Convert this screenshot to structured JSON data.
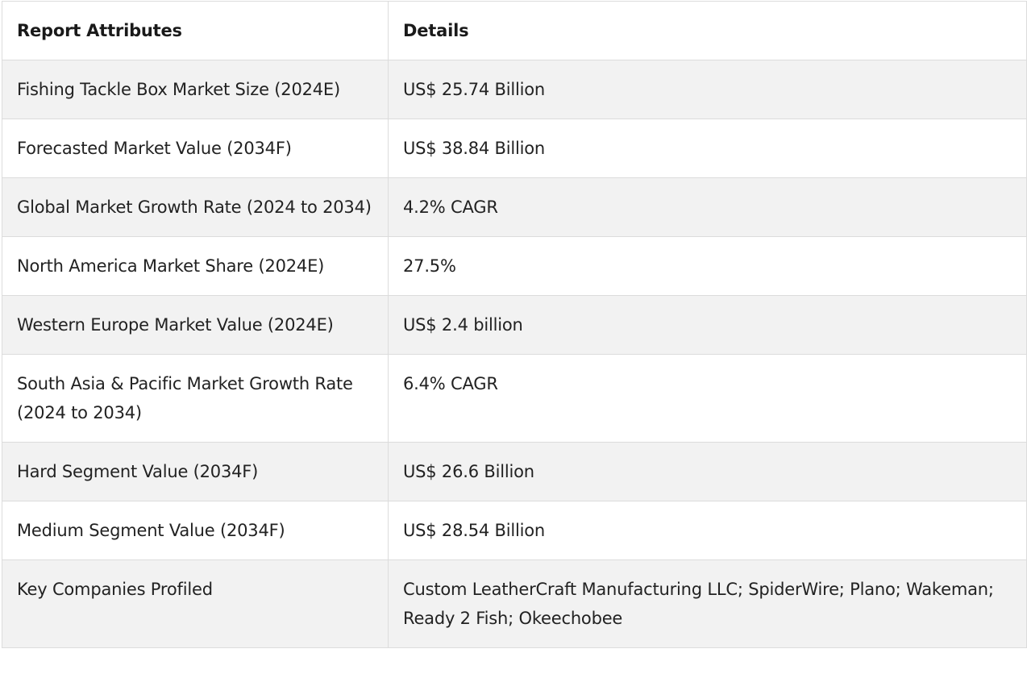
{
  "table": {
    "headers": [
      "Report Attributes",
      "Details"
    ],
    "rows": [
      [
        "Fishing Tackle Box Market Size (2024E)",
        "US$ 25.74 Billion"
      ],
      [
        "Forecasted Market Value (2034F)",
        "US$ 38.84 Billion"
      ],
      [
        "Global Market Growth Rate (2024 to 2034)",
        "4.2% CAGR"
      ],
      [
        "North America Market Share (2024E)",
        "27.5%"
      ],
      [
        "Western Europe Market Value (2024E)",
        "US$ 2.4 billion"
      ],
      [
        "South Asia & Pacific Market Growth Rate (2024 to 2034)",
        "6.4% CAGR"
      ],
      [
        "Hard Segment Value (2034F)",
        "US$ 26.6 Billion"
      ],
      [
        "Medium Segment Value (2034F)",
        "US$ 28.54 Billion"
      ],
      [
        "Key Companies Profiled",
        "Custom LeatherCraft Manufacturing LLC; SpiderWire; Plano; Wakeman; Ready 2 Fish; Okeechobee"
      ]
    ]
  }
}
